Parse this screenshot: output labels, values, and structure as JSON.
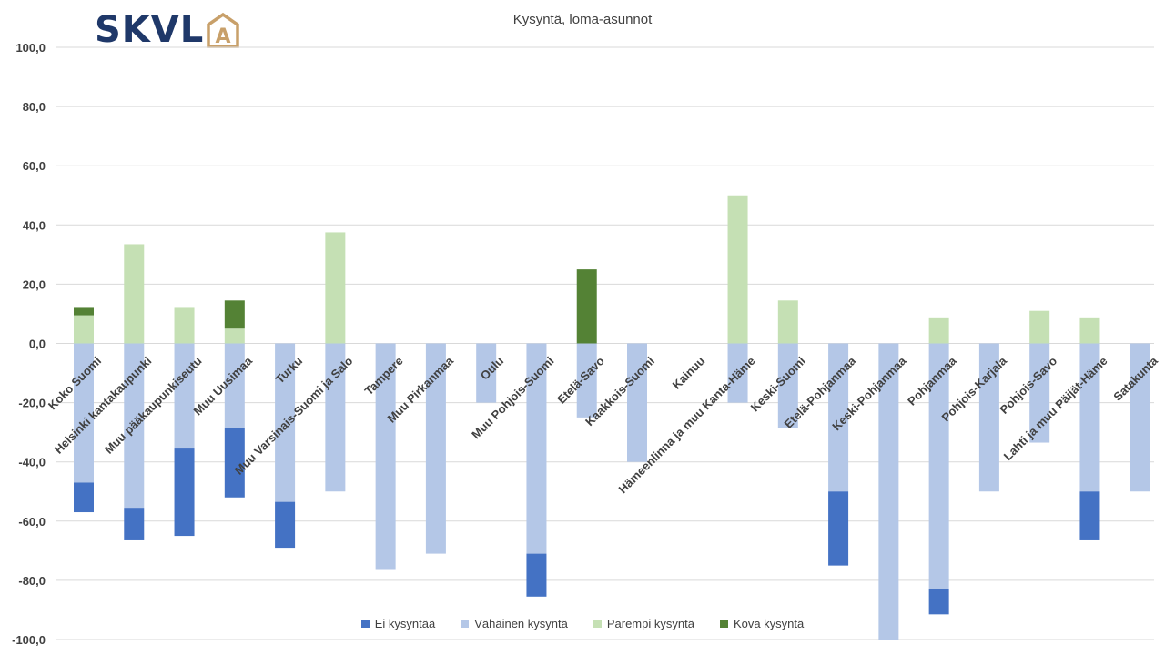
{
  "logo": {
    "text": "SKVL",
    "house_letter": "A",
    "text_color": "#1f3869",
    "house_color": "#c8a06a"
  },
  "chart_data": {
    "type": "bar",
    "stacked": true,
    "title": "Kysyntä, loma-asunnot",
    "xlabel": "",
    "ylabel": "",
    "ylim": [
      -100,
      100
    ],
    "y_ticks": [
      "100,0",
      "80,0",
      "60,0",
      "40,0",
      "20,0",
      "0,0",
      "-20,0",
      "-40,0",
      "-60,0",
      "-80,0",
      "-100,0"
    ],
    "grid": true,
    "legend_position": "bottom",
    "categories": [
      "Koko Suomi",
      "Helsinki kantakaupunki",
      "Muu pääkaupunkiseutu",
      "Muu Uusimaa",
      "Turku",
      "Muu Varsinais-Suomi ja Salo",
      "Tampere",
      "Muu Pirkanmaa",
      "Oulu",
      "Muu Pohjois-Suomi",
      "Etelä-Savo",
      "Kaakkois-Suomi",
      "Kainuu",
      "Hämeenlinna ja muu Kanta-Häme",
      "Keski-Suomi",
      "Etelä-Pohjanmaa",
      "Keski-Pohjanmaa",
      "Pohjanmaa",
      "Pohjois-Karjala",
      "Pohjois-Savo",
      "Lahti ja muu Päijät-Häme",
      "Satakunta"
    ],
    "series": [
      {
        "name": "Ei kysyntää",
        "color": "#4472c4",
        "direction": "negative",
        "values": [
          10,
          11,
          29.5,
          23.5,
          15.5,
          0,
          0,
          0,
          0,
          14.5,
          0,
          0,
          0,
          0,
          0,
          25,
          0,
          8.5,
          0,
          0,
          16.5,
          0
        ]
      },
      {
        "name": "Vähäinen kysyntä",
        "color": "#b4c7e7",
        "direction": "negative",
        "values": [
          47,
          55.5,
          35.5,
          28.5,
          53.5,
          50,
          76.5,
          71,
          20,
          71,
          25,
          40,
          0,
          20,
          28.5,
          50,
          100,
          83,
          50,
          33.5,
          50,
          50
        ]
      },
      {
        "name": "Parempi kysyntä",
        "color": "#c5e0b4",
        "direction": "positive",
        "values": [
          9.5,
          33.5,
          12,
          5,
          0,
          37.5,
          0,
          0,
          0,
          0,
          0,
          0,
          0,
          50,
          14.5,
          0,
          0,
          8.5,
          0,
          11,
          8.5,
          0
        ]
      },
      {
        "name": "Kova kysyntä",
        "color": "#548235",
        "direction": "positive",
        "values": [
          2.5,
          0,
          0,
          9.5,
          0,
          0,
          0,
          0,
          0,
          0,
          25,
          0,
          0,
          0,
          0,
          0,
          0,
          0,
          0,
          0,
          0,
          0
        ]
      }
    ]
  }
}
